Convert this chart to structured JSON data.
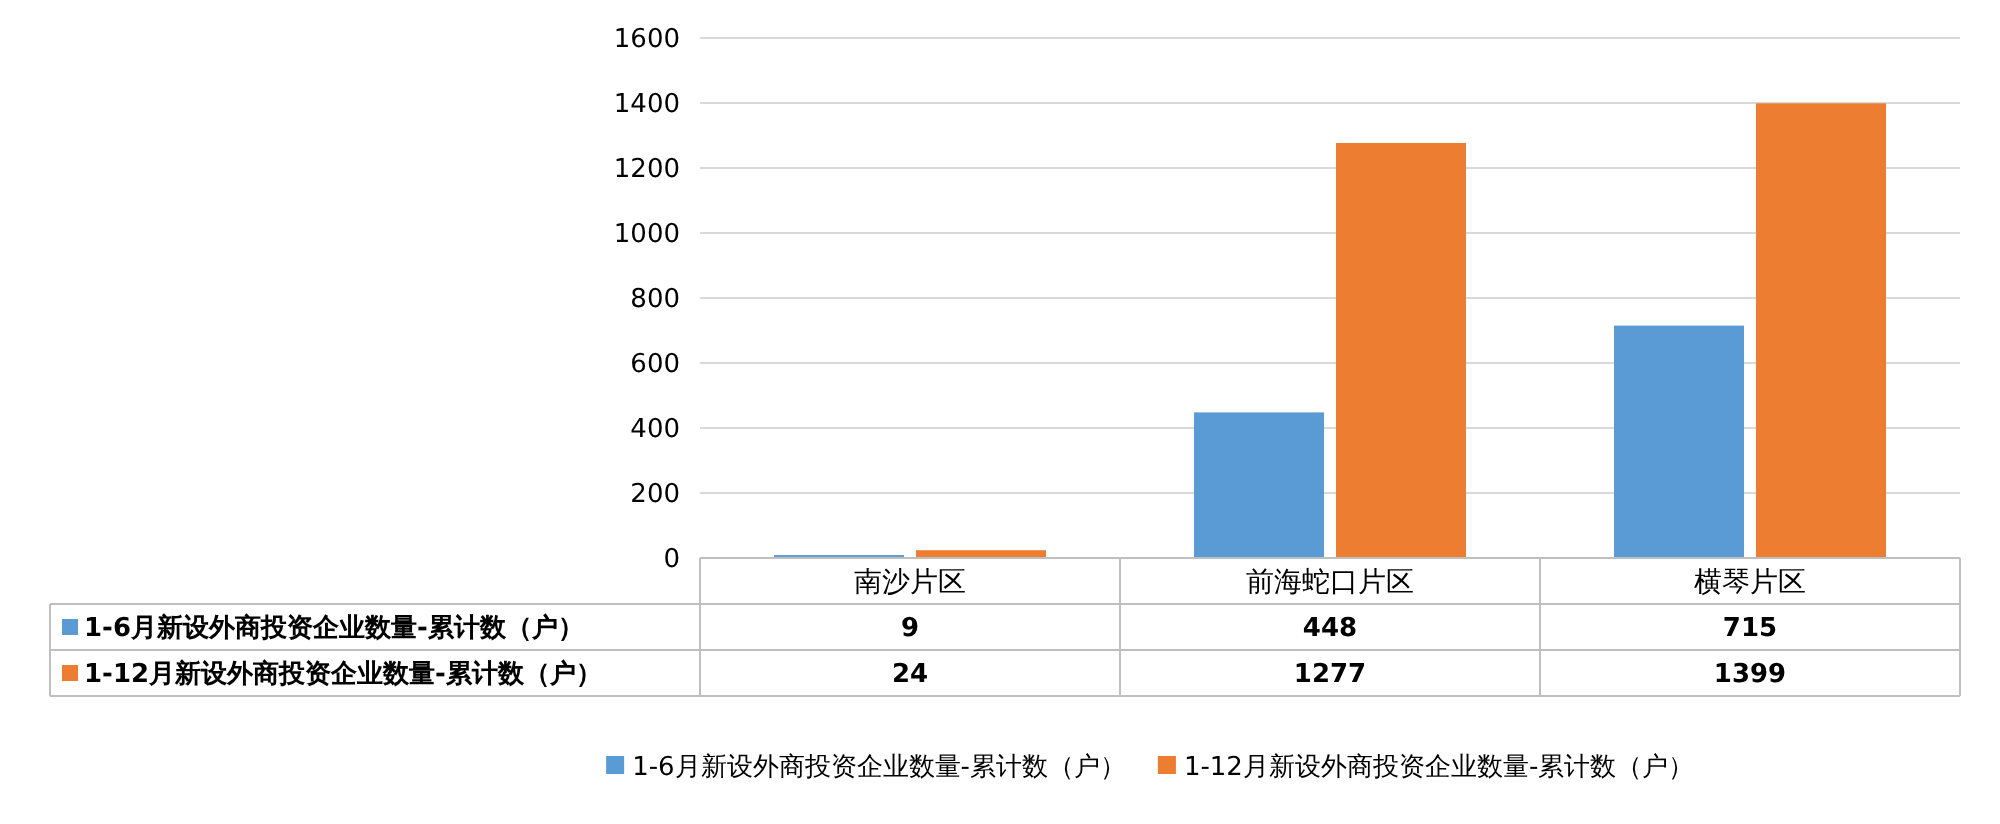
{
  "chart_data": {
    "type": "bar",
    "categories": [
      "南沙片区",
      "前海蛇口片区",
      "横琴片区"
    ],
    "series": [
      {
        "name": "1-6月新设外商投资企业数量-累计数（户）",
        "color": "#5b9bd5",
        "values": [
          9,
          448,
          715
        ]
      },
      {
        "name": "1-12月新设外商投资企业数量-累计数（户）",
        "color": "#ed7d31",
        "values": [
          24,
          1277,
          1399
        ]
      }
    ],
    "ylim": [
      0,
      1600
    ],
    "yticks": [
      0,
      200,
      400,
      600,
      800,
      1000,
      1200,
      1400,
      1600
    ],
    "grid": "y",
    "legend": "bottom",
    "data_labels": true
  }
}
